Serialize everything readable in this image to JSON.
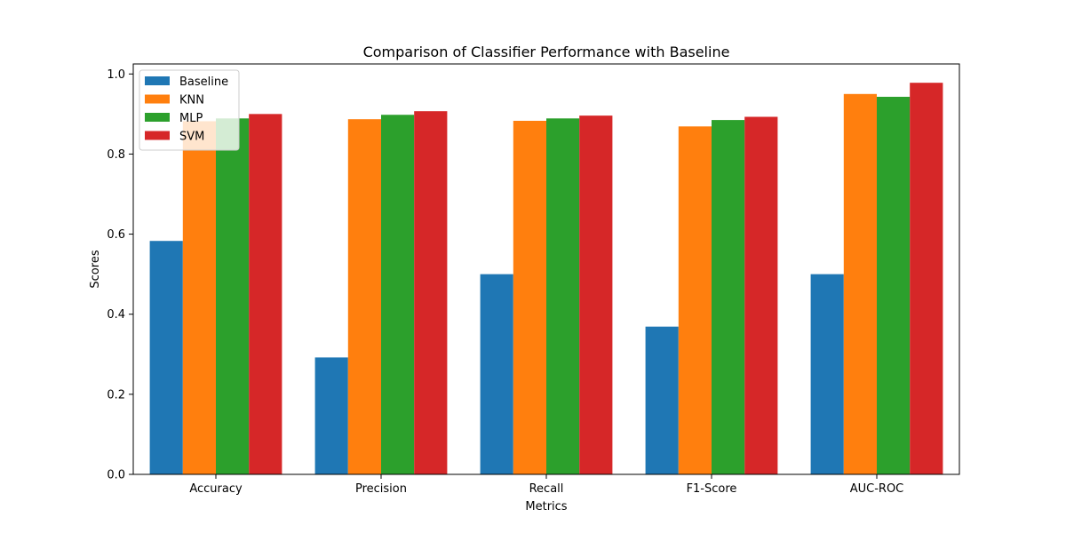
{
  "chart_data": {
    "type": "bar",
    "title": "Comparison of Classifier Performance with Baseline",
    "xlabel": "Metrics",
    "ylabel": "Scores",
    "categories": [
      "Accuracy",
      "Precision",
      "Recall",
      "F1-Score",
      "AUC-ROC"
    ],
    "ylim": [
      0,
      1.025
    ],
    "yticks": [
      0.0,
      0.2,
      0.4,
      0.6,
      0.8,
      1.0
    ],
    "ytick_labels": [
      "0.0",
      "0.2",
      "0.4",
      "0.6",
      "0.8",
      "1.0"
    ],
    "grid": false,
    "legend_position": "top-left",
    "series": [
      {
        "name": "Baseline",
        "color": "#1f77b4",
        "values": [
          0.583,
          0.292,
          0.5,
          0.369,
          0.5
        ]
      },
      {
        "name": "KNN",
        "color": "#ff7f0e",
        "values": [
          0.882,
          0.887,
          0.883,
          0.869,
          0.95
        ]
      },
      {
        "name": "MLP",
        "color": "#2ca02c",
        "values": [
          0.889,
          0.898,
          0.889,
          0.885,
          0.943
        ]
      },
      {
        "name": "SVM",
        "color": "#d62728",
        "values": [
          0.9,
          0.907,
          0.896,
          0.893,
          0.978
        ]
      }
    ]
  }
}
